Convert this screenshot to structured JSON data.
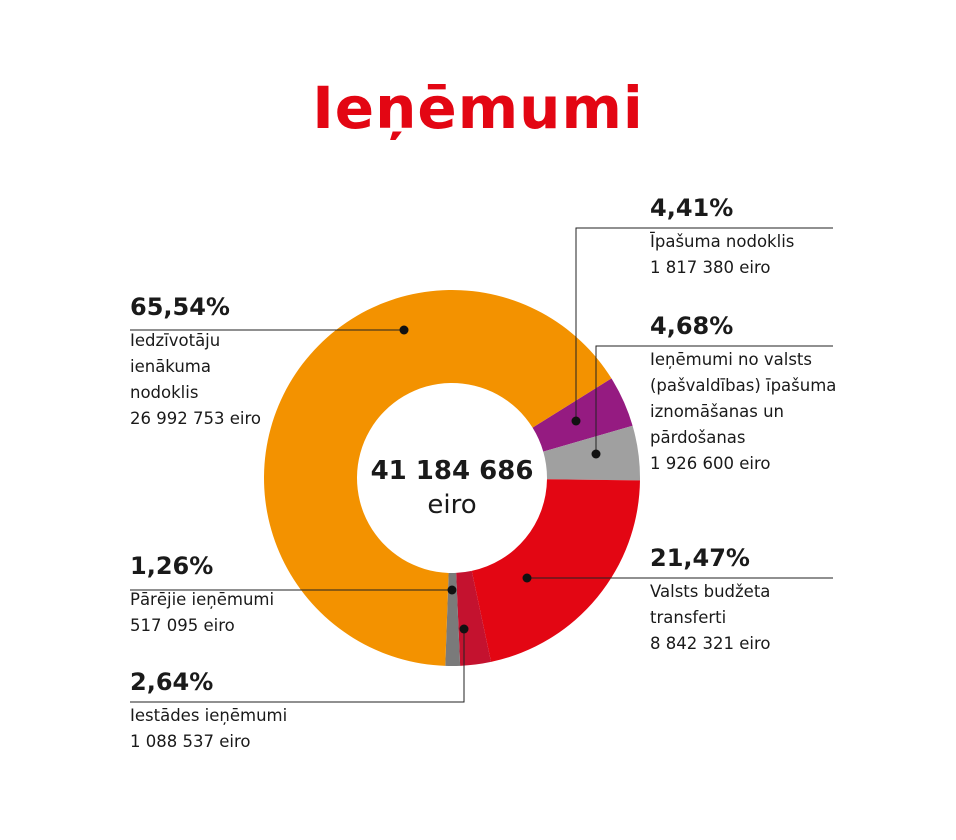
{
  "chart_data": {
    "type": "pie",
    "title": "Ieņēmumi",
    "donut": true,
    "center_total": "41 184 686",
    "center_unit": "eiro",
    "slices": [
      {
        "name": "Īpašuma nodoklis",
        "pct": 4.41,
        "pct_label": "4,41%",
        "amount": "1 817 380 eiro",
        "color": "#951b81"
      },
      {
        "name": "Ieņēmumi no valsts\n(pašvaldības) īpašuma\niznomāšanas un\npārdošanas",
        "pct": 4.68,
        "pct_label": "4,68%",
        "amount": "1 926 600 eiro",
        "color": "#a0a0a0"
      },
      {
        "name": "Valsts budžeta\ntransferti",
        "pct": 21.47,
        "pct_label": "21,47%",
        "amount": "8 842 321 eiro",
        "color": "#e30613"
      },
      {
        "name": "Iestādes ieņēmumi",
        "pct": 2.64,
        "pct_label": "2,64%",
        "amount": "1 088 537 eiro",
        "color": "#c4122f"
      },
      {
        "name": "Pārējie ieņēmumi",
        "pct": 1.26,
        "pct_label": "1,26%",
        "amount": "517 095 eiro",
        "color": "#7a7a7a"
      },
      {
        "name": "Iedzīvotāju\nienākuma\nnodoklis",
        "pct": 65.54,
        "pct_label": "65,54%",
        "amount": "26 992 753 eiro",
        "color": "#f39200"
      }
    ]
  }
}
